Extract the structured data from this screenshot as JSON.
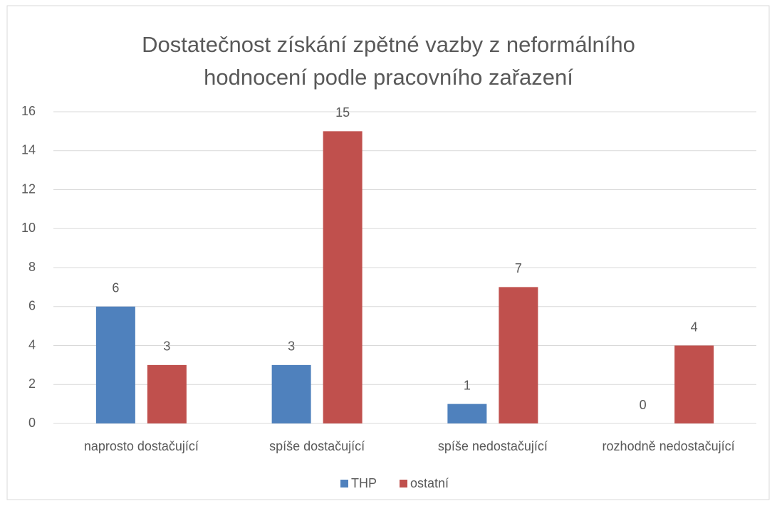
{
  "chart_data": {
    "type": "bar",
    "title": "Dostatečnost získání zpětné vazby z neformálního hodnocení podle pracovního zařazení",
    "categories": [
      "naprosto dostačující",
      "spíše dostačující",
      "spíše nedostačující",
      "rozhodně nedostačující"
    ],
    "series": [
      {
        "name": "THP",
        "color": "#4f81bd",
        "values": [
          6,
          3,
          1,
          0
        ]
      },
      {
        "name": "ostatní",
        "color": "#c0504d",
        "values": [
          3,
          15,
          7,
          4
        ]
      }
    ],
    "ylim": [
      0,
      16
    ],
    "yticks": [
      0,
      2,
      4,
      6,
      8,
      10,
      12,
      14,
      16
    ],
    "grid": true,
    "legend": "bottom"
  }
}
